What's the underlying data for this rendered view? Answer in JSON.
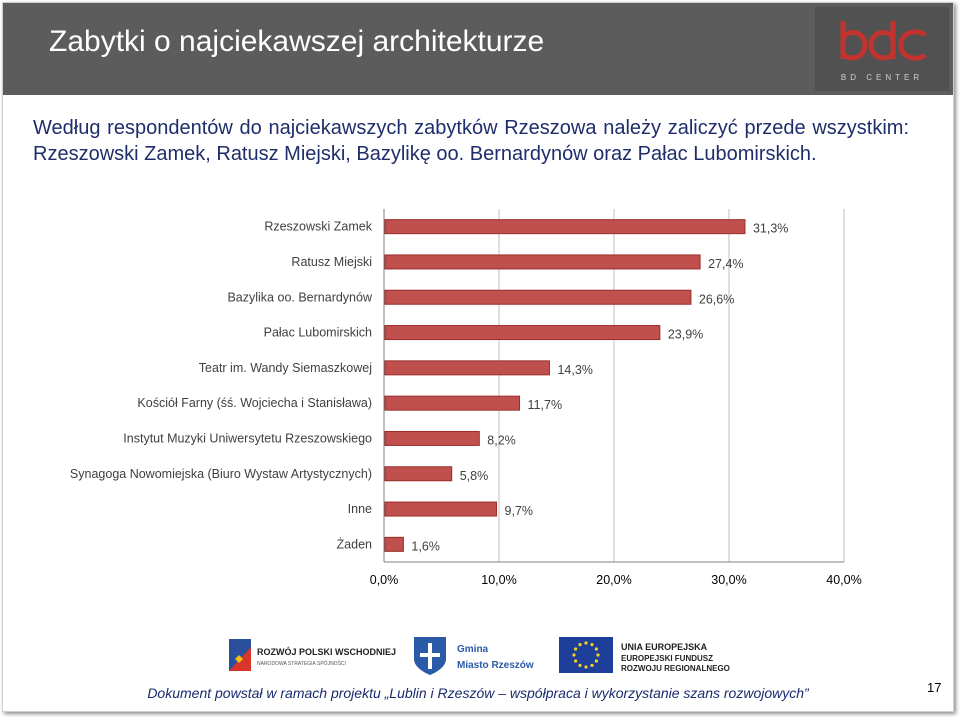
{
  "slide": {
    "title": "Zabytki o najciekawszej architekturze",
    "intro": "Według respondentów do najciekawszych zabytków Rzeszowa należy zaliczyć przede wszystkim: Rzeszowski Zamek, Ratusz Miejski, Bazylikę oo. Bernardynów oraz Pałac Lubomirskich.",
    "page_number": "17",
    "footer_text": "Dokument powstał w ramach projektu „Lublin i Rzeszów – współpraca i wykorzystanie szans rozwojowych”"
  },
  "logo": {
    "mark": "bdc",
    "subtitle": "BD CENTER",
    "color": "#c0332e"
  },
  "sponsors": {
    "rozwoj_line1": "ROZWÓJ POLSKI WSCHODNIEJ",
    "rozwoj_line2": "NARODOWA STRATEGIA SPÓJNOŚCI",
    "gmina_line1": "Gmina",
    "gmina_line2": "Miasto Rzeszów",
    "ue_line1": "UNIA EUROPEJSKA",
    "ue_line2": "EUROPEJSKI FUNDUSZ",
    "ue_line3": "ROZWOJU REGIONALNEGO"
  },
  "chart_data": {
    "type": "bar",
    "orientation": "horizontal",
    "categories": [
      "Rzeszowski Zamek",
      "Ratusz Miejski",
      "Bazylika oo. Bernardynów",
      "Pałac Lubomirskich",
      "Teatr im. Wandy Siemaszkowej",
      "Kościół Farny (śś. Wojciecha i Stanisława)",
      "Instytut Muzyki Uniwersytetu Rzeszowskiego",
      "Synagoga Nowomiejska  (Biuro Wystaw Artystycznych)",
      "Inne",
      "Żaden"
    ],
    "values": [
      31.3,
      27.4,
      26.6,
      23.9,
      14.3,
      11.7,
      8.2,
      5.8,
      9.7,
      1.6
    ],
    "value_labels": [
      "31,3%",
      "27,4%",
      "26,6%",
      "23,9%",
      "14,3%",
      "11,7%",
      "8,2%",
      "5,8%",
      "9,7%",
      "1,6%"
    ],
    "xlim": [
      0,
      40
    ],
    "ticks": [
      0,
      10,
      20,
      30,
      40
    ],
    "tick_labels": [
      "0,0%",
      "10,0%",
      "20,0%",
      "30,0%",
      "40,0%"
    ],
    "grid": true,
    "bar_color": "#c0504d",
    "bar_border": "#9b2d2a"
  }
}
